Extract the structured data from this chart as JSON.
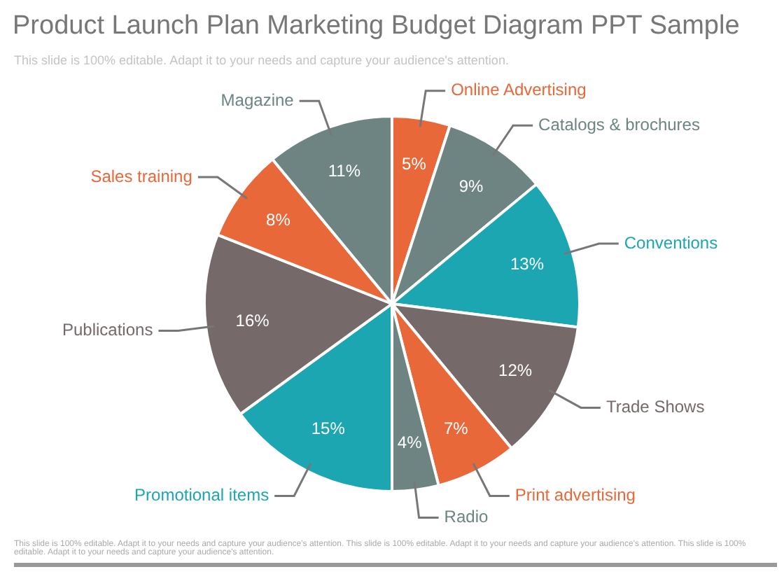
{
  "chart_data": {
    "type": "pie",
    "title": "Product Launch Plan Marketing Budget Diagram PPT Sample",
    "subtitle": "This slide is 100% editable. Adapt it to your needs and capture your audience's attention.",
    "categories": [
      "Online Advertising",
      "Catalogs & brochures",
      "Conventions",
      "Trade Shows",
      "Print advertising",
      "Radio",
      "Promotional items",
      "Publications",
      "Sales training",
      "Magazine"
    ],
    "values": [
      5,
      9,
      13,
      12,
      7,
      4,
      15,
      16,
      8,
      11
    ],
    "value_labels": [
      "5%",
      "9%",
      "13%",
      "12%",
      "7%",
      "4%",
      "15%",
      "16%",
      "8%",
      "11%"
    ],
    "colors": [
      "#e8683a",
      "#6d8483",
      "#1ba6b2",
      "#76696a",
      "#e8683a",
      "#6d8483",
      "#1ba6b2",
      "#76696a",
      "#e8683a",
      "#6d8483"
    ],
    "legend": false,
    "annotations": [
      "This slide is 100% editable. Adapt it to your needs and capture your audience's attention. This slide is 100% editable. Adapt it to your needs and capture your audience's attention. This slide is 100% editable. Adapt it to your needs and capture your audience's attention."
    ]
  }
}
